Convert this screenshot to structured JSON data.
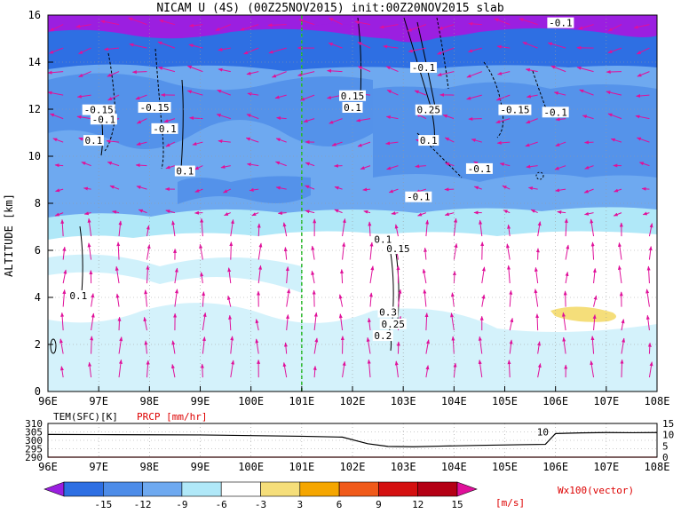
{
  "chart_data": [
    {
      "type": "heatmap",
      "title": "NICAM U (4S) (00Z25NOV2015) init:00Z20NOV2015 slab",
      "xlabel": "",
      "ylabel": "ALTITUDE [km]",
      "x_ticks": [
        "96E",
        "97E",
        "98E",
        "99E",
        "100E",
        "101E",
        "102E",
        "103E",
        "104E",
        "105E",
        "106E",
        "107E",
        "108E"
      ],
      "x_range": [
        96,
        108
      ],
      "y_ticks": [
        "0",
        "2",
        "4",
        "6",
        "8",
        "10",
        "12",
        "14",
        "16"
      ],
      "y_range": [
        0,
        16
      ],
      "grid": true,
      "marker_line": {
        "lon": 101.0,
        "color": "#22bb22"
      },
      "contour_labels": [
        {
          "text": "-0.1",
          "lon": 106.1,
          "alt": 15.6
        },
        {
          "text": "-0.1",
          "lon": 103.4,
          "alt": 13.7
        },
        {
          "text": "0.15",
          "lon": 102.0,
          "alt": 12.5
        },
        {
          "text": "0.1",
          "lon": 102.0,
          "alt": 12.0
        },
        {
          "text": "-0.15",
          "lon": 97.0,
          "alt": 11.9
        },
        {
          "text": "-0.1",
          "lon": 97.1,
          "alt": 11.5
        },
        {
          "text": "-0.15",
          "lon": 98.1,
          "alt": 12.0
        },
        {
          "text": "-0.1",
          "lon": 98.3,
          "alt": 11.1
        },
        {
          "text": "0.1",
          "lon": 96.9,
          "alt": 10.6
        },
        {
          "text": "0.1",
          "lon": 98.7,
          "alt": 9.3
        },
        {
          "text": "0.25",
          "lon": 103.5,
          "alt": 11.9
        },
        {
          "text": "-0.15",
          "lon": 105.2,
          "alt": 11.9
        },
        {
          "text": "-0.1",
          "lon": 106.0,
          "alt": 11.8
        },
        {
          "text": "0.1",
          "lon": 103.5,
          "alt": 10.6
        },
        {
          "text": "-0.1",
          "lon": 104.5,
          "alt": 9.4
        },
        {
          "text": "-0.1",
          "lon": 103.3,
          "alt": 8.2
        },
        {
          "text": "0.1",
          "lon": 102.6,
          "alt": 6.4
        },
        {
          "text": "0.15",
          "lon": 102.9,
          "alt": 6.0
        },
        {
          "text": "0.1",
          "lon": 96.6,
          "alt": 4.0
        },
        {
          "text": "0.3",
          "lon": 102.7,
          "alt": 3.3
        },
        {
          "text": "0.25",
          "lon": 102.8,
          "alt": 2.8
        },
        {
          "text": "0.2",
          "lon": 102.6,
          "alt": 2.3
        }
      ]
    },
    {
      "type": "line",
      "series": [
        {
          "name": "TEM(SFC)[K]",
          "color": "#000000",
          "x": [
            96,
            97,
            98,
            99,
            100,
            101,
            101.8,
            102.3,
            102.7,
            103.2,
            103.8,
            104.5,
            105.3,
            105.8,
            106.0,
            106.5,
            107,
            107.5,
            108
          ],
          "values": [
            303.5,
            303.4,
            303.3,
            303.2,
            302.8,
            302.4,
            301.9,
            298.0,
            296.4,
            296.2,
            296.6,
            297.0,
            297.4,
            297.6,
            304.0,
            304.4,
            304.6,
            304.5,
            304.6
          ]
        },
        {
          "name": "PRCP [mm/hr]",
          "color": "#dd0000",
          "x": [
            96,
            108
          ],
          "values": [
            0,
            0
          ]
        }
      ],
      "x_ticks": [
        "96E",
        "97E",
        "98E",
        "99E",
        "100E",
        "101E",
        "102E",
        "103E",
        "104E",
        "105E",
        "106E",
        "107E",
        "108E"
      ],
      "left_axis_ticks": [
        "290",
        "295",
        "300",
        "305",
        "310"
      ],
      "left_range": [
        290,
        310
      ],
      "right_axis_ticks": [
        "0",
        "5",
        "10",
        "15"
      ],
      "right_range": [
        0,
        15
      ],
      "annotations": [
        {
          "text": "10",
          "lon": 105.75
        }
      ]
    }
  ],
  "colorbar": {
    "labels": [
      "-15",
      "-12",
      "-9",
      "-6",
      "-3",
      "3",
      "6",
      "9",
      "12",
      "15"
    ],
    "units": "[m/s]",
    "colors": [
      "#9b1fe0",
      "#2e6fe3",
      "#4d8ce8",
      "#6ea9f0",
      "#b0e8f8",
      "#ffffff",
      "#f5de7a",
      "#f5a600",
      "#f05a1a",
      "#d41010",
      "#b40015",
      "#e0109a"
    ],
    "vector_label": "Wx100(vector)"
  }
}
